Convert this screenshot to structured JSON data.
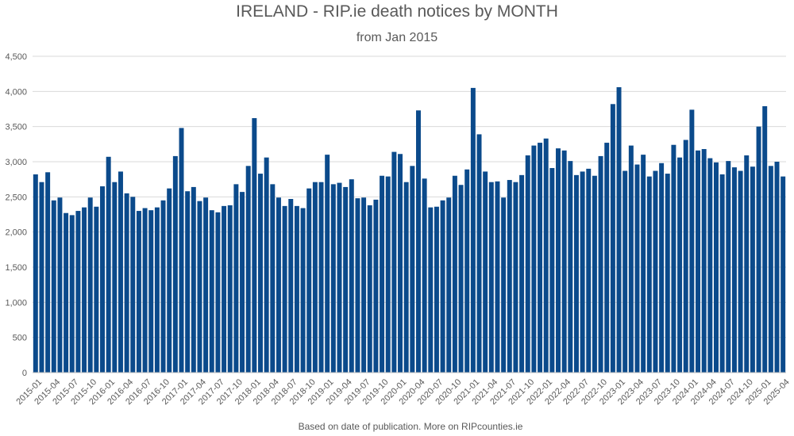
{
  "chart_data": {
    "type": "bar",
    "title": "IRELAND - RIP.ie death notices by MONTH",
    "subtitle": "from Jan 2015",
    "caption": "Based on date of publication. More on RIPcounties.ie",
    "xlabel": "",
    "ylabel": "",
    "ylim": [
      0,
      4500
    ],
    "y_ticks": [
      "0",
      "500",
      "1,000",
      "1,500",
      "2,000",
      "2,500",
      "3,000",
      "3,500",
      "4,000",
      "4,500"
    ],
    "grid": true,
    "bar_color": "#0B4A8B",
    "x_tick_labels": [
      "2015-01",
      "2015-04",
      "2015-07",
      "2015-10",
      "2016-01",
      "2016-04",
      "2016-07",
      "2016-10",
      "2017-01",
      "2017-04",
      "2017-07",
      "2017-10",
      "2018-01",
      "2018-04",
      "2018-07",
      "2018-10",
      "2019-01",
      "2019-04",
      "2019-07",
      "2019-10",
      "2020-01",
      "2020-04",
      "2020-07",
      "2020-10",
      "2021-01",
      "2021-04",
      "2021-07",
      "2021-10",
      "2022-01",
      "2022-04",
      "2022-07",
      "2022-10",
      "2023-01",
      "2023-04",
      "2023-07",
      "2023-10",
      "2024-01",
      "2024-04",
      "2024-07",
      "2024-10",
      "2025-01",
      "2025-04"
    ],
    "categories": [
      "2015-01",
      "2015-02",
      "2015-03",
      "2015-04",
      "2015-05",
      "2015-06",
      "2015-07",
      "2015-08",
      "2015-09",
      "2015-10",
      "2015-11",
      "2015-12",
      "2016-01",
      "2016-02",
      "2016-03",
      "2016-04",
      "2016-05",
      "2016-06",
      "2016-07",
      "2016-08",
      "2016-09",
      "2016-10",
      "2016-11",
      "2016-12",
      "2017-01",
      "2017-02",
      "2017-03",
      "2017-04",
      "2017-05",
      "2017-06",
      "2017-07",
      "2017-08",
      "2017-09",
      "2017-10",
      "2017-11",
      "2017-12",
      "2018-01",
      "2018-02",
      "2018-03",
      "2018-04",
      "2018-05",
      "2018-06",
      "2018-07",
      "2018-08",
      "2018-09",
      "2018-10",
      "2018-11",
      "2018-12",
      "2019-01",
      "2019-02",
      "2019-03",
      "2019-04",
      "2019-05",
      "2019-06",
      "2019-07",
      "2019-08",
      "2019-09",
      "2019-10",
      "2019-11",
      "2019-12",
      "2020-01",
      "2020-02",
      "2020-03",
      "2020-04",
      "2020-05",
      "2020-06",
      "2020-07",
      "2020-08",
      "2020-09",
      "2020-10",
      "2020-11",
      "2020-12",
      "2021-01",
      "2021-02",
      "2021-03",
      "2021-04",
      "2021-05",
      "2021-06",
      "2021-07",
      "2021-08",
      "2021-09",
      "2021-10",
      "2021-11",
      "2021-12",
      "2022-01",
      "2022-02",
      "2022-03",
      "2022-04",
      "2022-05",
      "2022-06",
      "2022-07",
      "2022-08",
      "2022-09",
      "2022-10",
      "2022-11",
      "2022-12",
      "2023-01",
      "2023-02",
      "2023-03",
      "2023-04",
      "2023-05",
      "2023-06",
      "2023-07",
      "2023-08",
      "2023-09",
      "2023-10",
      "2023-11",
      "2023-12",
      "2024-01",
      "2024-02",
      "2024-03",
      "2024-04",
      "2024-05",
      "2024-06",
      "2024-07",
      "2024-08",
      "2024-09",
      "2024-10",
      "2024-11",
      "2024-12",
      "2025-01",
      "2025-02",
      "2025-03",
      "2025-04"
    ],
    "values": [
      2820,
      2710,
      2850,
      2450,
      2490,
      2270,
      2240,
      2300,
      2350,
      2490,
      2360,
      2650,
      3070,
      2710,
      2860,
      2550,
      2500,
      2300,
      2340,
      2310,
      2350,
      2450,
      2620,
      3080,
      3480,
      2580,
      2640,
      2440,
      2490,
      2310,
      2280,
      2370,
      2380,
      2680,
      2570,
      2940,
      3620,
      2830,
      3060,
      2680,
      2490,
      2370,
      2470,
      2370,
      2340,
      2620,
      2710,
      2710,
      3100,
      2680,
      2700,
      2640,
      2750,
      2480,
      2490,
      2380,
      2460,
      2800,
      2790,
      3140,
      3110,
      2710,
      2940,
      3730,
      2760,
      2350,
      2360,
      2450,
      2490,
      2800,
      2670,
      2890,
      4050,
      3390,
      2860,
      2710,
      2720,
      2490,
      2740,
      2710,
      2810,
      3090,
      3230,
      3270,
      3330,
      2910,
      3190,
      3160,
      3010,
      2810,
      2860,
      2900,
      2800,
      3080,
      3270,
      3820,
      4060,
      2870,
      3230,
      2960,
      3100,
      2790,
      2870,
      2980,
      2830,
      3240,
      3060,
      3310,
      3740,
      3160,
      3180,
      3050,
      2990,
      2820,
      3010,
      2920,
      2870,
      3090,
      2930,
      3500,
      3790,
      2940,
      3000,
      2790
    ]
  }
}
